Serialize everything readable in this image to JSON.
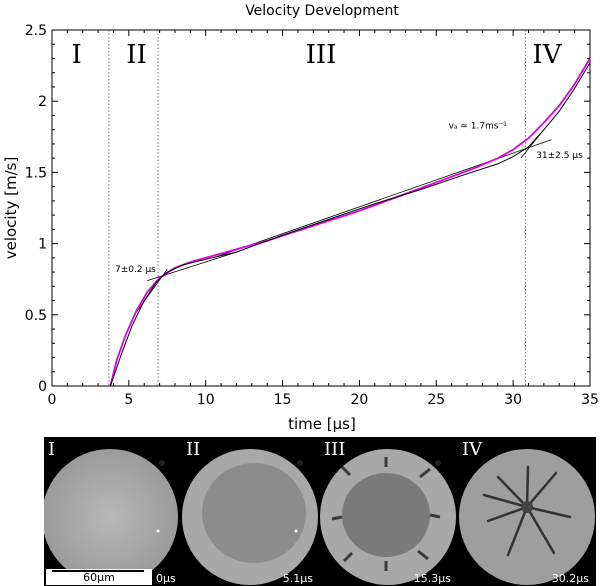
{
  "chart_data": {
    "type": "line",
    "title": "Velocity Development",
    "xlabel": "time [μs]",
    "ylabel": "velocity [m/s]",
    "xlim": [
      0,
      35
    ],
    "ylim": [
      0,
      2.5
    ],
    "xticks": [
      "0",
      "5",
      "10",
      "15",
      "20",
      "25",
      "30",
      "35"
    ],
    "yticks": [
      "0",
      "0.5",
      "1",
      "1.5",
      "2",
      "2.5"
    ],
    "grid": false,
    "series": [
      {
        "color": "#e000e0",
        "x": [
          3.8,
          4.2,
          4.8,
          5.5,
          6.2,
          7.0,
          8.0,
          9.0,
          10.0,
          11.0,
          12.0,
          14.0,
          16.0,
          18.0,
          20.0,
          22.0,
          24.0,
          26.0,
          27.5,
          29.0,
          30.0,
          31.0,
          32.0,
          33.0,
          34.0,
          35.0
        ],
        "y": [
          0.0,
          0.18,
          0.36,
          0.53,
          0.66,
          0.76,
          0.83,
          0.87,
          0.9,
          0.93,
          0.96,
          1.02,
          1.09,
          1.16,
          1.23,
          1.31,
          1.39,
          1.47,
          1.53,
          1.6,
          1.66,
          1.74,
          1.85,
          1.97,
          2.12,
          2.3
        ]
      },
      {
        "color": "#000000",
        "x": [
          3.8,
          4.5,
          5.2,
          6.0,
          6.8,
          7.5,
          8.5,
          10.0,
          12.0,
          15.0,
          18.0,
          21.0,
          24.0,
          27.0,
          29.0,
          30.0,
          31.0,
          32.0,
          33.0,
          34.0,
          35.0
        ],
        "y": [
          0.0,
          0.22,
          0.42,
          0.6,
          0.73,
          0.8,
          0.85,
          0.89,
          0.94,
          1.06,
          1.17,
          1.28,
          1.38,
          1.49,
          1.56,
          1.61,
          1.68,
          1.8,
          1.93,
          2.09,
          2.27
        ]
      }
    ],
    "tangent_lines": [
      {
        "x": [
          5.5,
          7.5
        ],
        "y": [
          0.52,
          0.82
        ]
      },
      {
        "x": [
          6.2,
          12.0
        ],
        "y": [
          0.74,
          0.94
        ]
      },
      {
        "x": [
          10.5,
          32.5
        ],
        "y": [
          0.9,
          1.73
        ]
      },
      {
        "x": [
          30.5,
          32.0
        ],
        "y": [
          1.6,
          1.8
        ]
      }
    ],
    "phase_boundaries": [
      3.7,
      6.9,
      30.8
    ],
    "phase_labels": [
      {
        "text": "I",
        "x": 1.6,
        "y": 2.27
      },
      {
        "text": "II",
        "x": 5.5,
        "y": 2.27
      },
      {
        "text": "III",
        "x": 17.5,
        "y": 2.27
      },
      {
        "text": "IV",
        "x": 32.2,
        "y": 2.27
      }
    ],
    "annotations": [
      {
        "text": "7±0.2 μs",
        "x": 4.1,
        "y": 0.8
      },
      {
        "text": "vₐ ≈ 1.7ms⁻¹",
        "x": 25.8,
        "y": 1.81
      },
      {
        "text": "31±2.5 μs",
        "x": 31.5,
        "y": 1.6
      }
    ]
  },
  "image_strip": {
    "panels": [
      {
        "label": "I",
        "time": "0μs"
      },
      {
        "label": "II",
        "time": "5.1μs"
      },
      {
        "label": "III",
        "time": "15.3μs"
      },
      {
        "label": "IV",
        "time": "30.2μs"
      }
    ],
    "scale_bar": "60μm"
  }
}
